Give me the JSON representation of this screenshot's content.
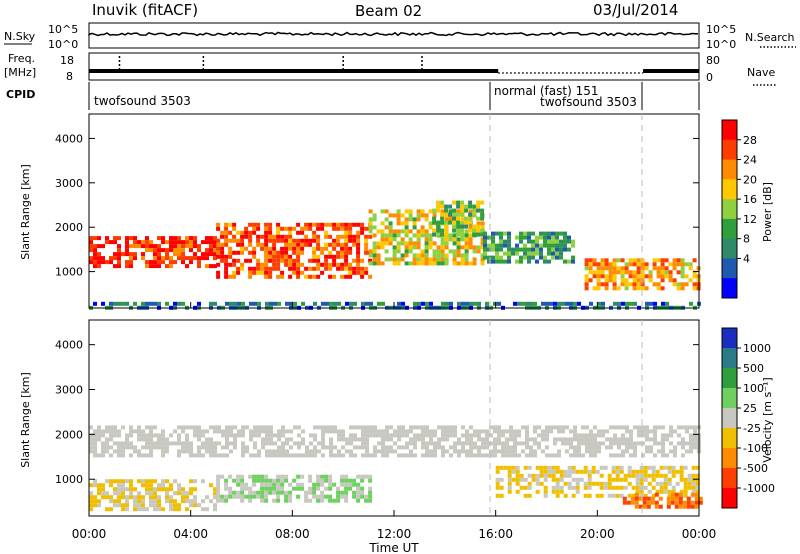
{
  "header": {
    "station": "Inuvik (fitACF)",
    "beam": "Beam 02",
    "date": "03/Jul/2014"
  },
  "status_panel": {
    "nsky_label": "N.Sky",
    "nsky_ticks": [
      "10^5",
      "10^0"
    ],
    "nsearch_label": "N.Search",
    "nsearch_ticks": [
      "10^5",
      "10^0"
    ],
    "freq_label_1": "Freq.",
    "freq_label_2": "[MHz]",
    "freq_left_ticks": [
      "18",
      "8"
    ],
    "nave_label": "Nave",
    "nave_ticks": [
      "80",
      "0"
    ],
    "cpid_label": "CPID",
    "modes": [
      {
        "name": "twofsound 3503"
      },
      {
        "name": "normal (fast) 151"
      },
      {
        "name": "twofsound 3503"
      }
    ]
  },
  "axes": {
    "y_label": "Slant Range [km]",
    "y_ticks": [
      "4000",
      "3000",
      "2000",
      "1000"
    ],
    "x_label": "Time UT",
    "x_ticks": [
      "00:00",
      "04:00",
      "08:00",
      "12:00",
      "16:00",
      "20:00",
      "00:00"
    ]
  },
  "power_colorbar": {
    "label": "Power [dB]",
    "ticks": [
      "28",
      "24",
      "20",
      "16",
      "12",
      "8",
      "4"
    ],
    "colors": [
      "#ff0000",
      "#ff3c00",
      "#ff8c00",
      "#ffc800",
      "#90d040",
      "#2f9e3c",
      "#2f8a6a",
      "#205ab0",
      "#0000ff"
    ]
  },
  "velocity_colorbar": {
    "label": "Velocity [m s⁻¹]",
    "ticks": [
      "1000",
      "500",
      "100",
      "25",
      "-25",
      "-100",
      "-500",
      "-1000"
    ],
    "colors": [
      "#1a2fbf",
      "#2a7a8a",
      "#2f9e3c",
      "#6ed060",
      "#c8c8c0",
      "#f0c000",
      "#ff8c00",
      "#ff4000",
      "#ff0000"
    ]
  },
  "chart_data": [
    {
      "type": "heatmap",
      "title": "Power",
      "xlabel": "Time UT",
      "ylabel": "Slant Range [km]",
      "xlim_hours": [
        0,
        24
      ],
      "ylim": [
        180,
        4550
      ],
      "colorbar_label": "Power [dB]",
      "colorbar_range": [
        0,
        30
      ],
      "bands": [
        {
          "t": [
            0,
            5
          ],
          "r": [
            1150,
            1800
          ],
          "value": 28
        },
        {
          "t": [
            5,
            11
          ],
          "r": [
            900,
            2100
          ],
          "value": 26
        },
        {
          "t": [
            11,
            15.5
          ],
          "r": [
            1200,
            2400
          ],
          "value": 18
        },
        {
          "t": [
            13.5,
            15.5
          ],
          "r": [
            1800,
            2600
          ],
          "value": 14
        },
        {
          "t": [
            15.5,
            19
          ],
          "r": [
            1200,
            1900
          ],
          "value": 10
        },
        {
          "t": [
            19.5,
            24
          ],
          "r": [
            600,
            1300
          ],
          "value": 22
        },
        {
          "t": [
            0,
            24
          ],
          "r": [
            180,
            320
          ],
          "value": 6
        }
      ]
    },
    {
      "type": "heatmap",
      "title": "Velocity",
      "xlabel": "Time UT",
      "ylabel": "Slant Range [km]",
      "xlim_hours": [
        0,
        24
      ],
      "ylim": [
        180,
        4550
      ],
      "colorbar_label": "Velocity [m s⁻¹]",
      "colorbar_range": [
        -1000,
        1000
      ],
      "bands": [
        {
          "t": [
            0,
            24
          ],
          "r": [
            1500,
            2200
          ],
          "value": 0
        },
        {
          "t": [
            0,
            5
          ],
          "r": [
            300,
            1000
          ],
          "value": -150
        },
        {
          "t": [
            5,
            11
          ],
          "r": [
            500,
            1100
          ],
          "value": 120
        },
        {
          "t": [
            16,
            24
          ],
          "r": [
            600,
            1300
          ],
          "value": -150
        },
        {
          "t": [
            21,
            24
          ],
          "r": [
            400,
            700
          ],
          "value": -600
        }
      ]
    }
  ]
}
